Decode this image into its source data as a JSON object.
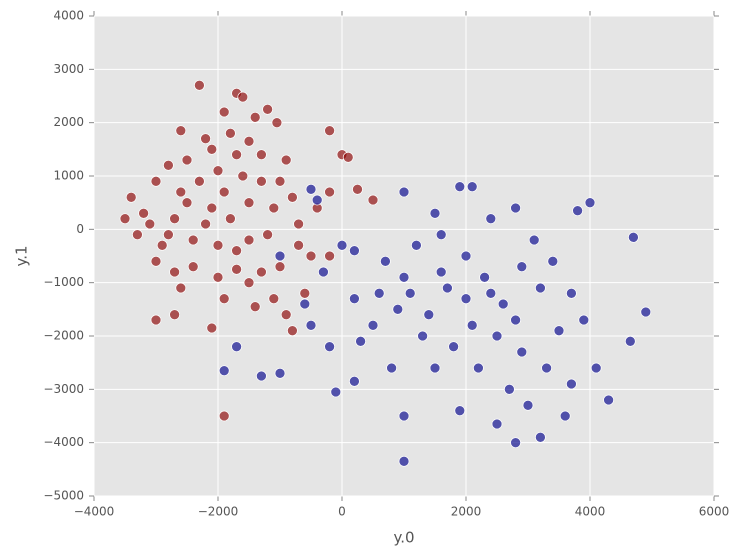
{
  "chart_data": {
    "type": "scatter",
    "xlabel": "y.0",
    "ylabel": "y.1",
    "xlim": [
      -4000,
      6000
    ],
    "ylim": [
      -5000,
      4000
    ],
    "xticks": [
      {
        "value": -4000,
        "label": "−4000"
      },
      {
        "value": -2000,
        "label": "−2000"
      },
      0,
      2000,
      4000,
      6000
    ],
    "yticks": [
      {
        "value": -5000,
        "label": "−5000"
      },
      {
        "value": -4000,
        "label": "−4000"
      },
      {
        "value": -3000,
        "label": "−3000"
      },
      {
        "value": -2000,
        "label": "−2000"
      },
      {
        "value": -1000,
        "label": "−1000"
      },
      0,
      1000,
      2000,
      3000,
      4000
    ],
    "grid": true,
    "series": [
      {
        "color": "#8b0000",
        "x": [
          -2300,
          -1700,
          -1600,
          -1900,
          -1200,
          -1400,
          -1050,
          -2600,
          -200,
          -2200,
          -1800,
          -1500,
          -900,
          -2500,
          -2800,
          -3000,
          -3400,
          -3500,
          -3200,
          -3300,
          -2900,
          -3000,
          -2700,
          -2400,
          -2000,
          -1700,
          -1300,
          -1000,
          -3000,
          -2700,
          -2600,
          -1900,
          -1400,
          -800,
          -2100,
          -900,
          -1100,
          -200,
          0,
          100,
          500,
          250,
          -500,
          -600,
          -200,
          -400,
          -700,
          -800,
          -1100,
          -1300,
          -1600,
          -1900,
          -2100,
          -2300,
          -2500,
          -2700,
          -2200,
          -1800,
          -1500,
          -1200,
          -1700,
          -2000,
          -2400,
          -2600,
          -2000,
          -1700,
          -1300,
          -1000,
          -700,
          -1500,
          -2100,
          -2800,
          -3100,
          -1900,
          -1500
        ],
        "values": [
          2700,
          2550,
          2480,
          2200,
          2250,
          2100,
          2000,
          1850,
          1850,
          1700,
          1800,
          1650,
          1300,
          1300,
          1200,
          900,
          600,
          200,
          300,
          -100,
          -300,
          -600,
          -800,
          -700,
          -900,
          -750,
          -800,
          -700,
          -1700,
          -1600,
          -1100,
          -3500,
          -1450,
          -1900,
          -1850,
          -1600,
          -1300,
          700,
          1400,
          1350,
          550,
          750,
          -500,
          -1200,
          -500,
          400,
          100,
          600,
          400,
          900,
          1000,
          700,
          400,
          900,
          500,
          200,
          100,
          200,
          -200,
          -100,
          -400,
          -300,
          -200,
          700,
          1100,
          1400,
          1400,
          900,
          -300,
          500,
          1500,
          -100,
          100,
          -1300,
          -1000
        ]
      },
      {
        "color": "#00008b",
        "x": [
          1000,
          2800,
          3200,
          1000,
          -1000,
          -1900,
          -1700,
          -1300,
          4700,
          4900,
          4650,
          4300,
          4000,
          3800,
          1900,
          2100,
          1000,
          -500,
          -400,
          -200,
          -100,
          200,
          3600,
          2500,
          1900,
          1500,
          800,
          500,
          200,
          -300,
          0,
          200,
          600,
          1000,
          1400,
          1700,
          2000,
          2300,
          2600,
          2900,
          3200,
          3500,
          3900,
          4100,
          3700,
          3300,
          2900,
          2500,
          2100,
          1800,
          1300,
          900,
          1200,
          1600,
          2400,
          2800,
          3100,
          3400,
          3700,
          2200,
          2700,
          3000,
          1600,
          2000,
          2400,
          2800,
          1100,
          700,
          -600,
          -1000,
          300,
          1500,
          -500
        ],
        "values": [
          -4350,
          -4000,
          -3900,
          -3500,
          -2700,
          -2650,
          -2200,
          -2750,
          -150,
          -1550,
          -2100,
          -3200,
          500,
          350,
          800,
          800,
          700,
          750,
          550,
          -2200,
          -3050,
          -2850,
          -3500,
          -3650,
          -3400,
          -2600,
          -2600,
          -1800,
          -1300,
          -800,
          -300,
          -400,
          -1200,
          -900,
          -1600,
          -1100,
          -500,
          -900,
          -1400,
          -700,
          -1100,
          -1900,
          -1700,
          -2600,
          -2900,
          -2600,
          -2300,
          -2000,
          -1800,
          -2200,
          -2000,
          -1500,
          -300,
          -100,
          200,
          400,
          -200,
          -600,
          -1200,
          -2600,
          -3000,
          -3300,
          -800,
          -1300,
          -1200,
          -1700,
          -1200,
          -600,
          -1400,
          -500,
          -2100,
          300,
          -1800
        ]
      }
    ]
  }
}
